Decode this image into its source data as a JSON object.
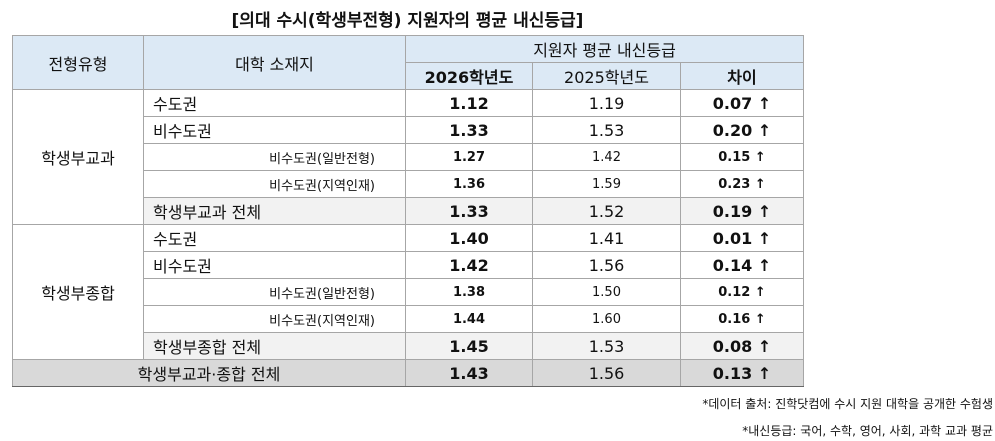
{
  "title": "[의대 수시(학생부전형) 지원자의 평균 내신등급]",
  "table": {
    "header": {
      "type": "전형유형",
      "region": "대학 소재지",
      "group": "지원자 평균 내신등급",
      "columns": [
        "2026학년도",
        "2025학년도",
        "차이"
      ]
    },
    "groups": [
      {
        "name": "학생부교과",
        "rows": [
          {
            "region": "수도권",
            "values": [
              "1.12",
              "1.19",
              "0.07 ↑"
            ]
          },
          {
            "region": "비수도권",
            "values": [
              "1.33",
              "1.53",
              "0.20 ↑"
            ],
            "breakdown": [
              {
                "region": "비수도권(일반전형)",
                "values": [
                  "1.27",
                  "1.42",
                  "0.15 ↑"
                ]
              },
              {
                "region": "비수도권(지역인재)",
                "values": [
                  "1.36",
                  "1.59",
                  "0.23 ↑"
                ]
              }
            ]
          }
        ],
        "total": {
          "region": "학생부교과 전체",
          "values": [
            "1.33",
            "1.52",
            "0.19 ↑"
          ]
        }
      },
      {
        "name": "학생부종합",
        "rows": [
          {
            "region": "수도권",
            "values": [
              "1.40",
              "1.41",
              "0.01 ↑"
            ]
          },
          {
            "region": "비수도권",
            "values": [
              "1.42",
              "1.56",
              "0.14 ↑"
            ],
            "breakdown": [
              {
                "region": "비수도권(일반전형)",
                "values": [
                  "1.38",
                  "1.50",
                  "0.12 ↑"
                ]
              },
              {
                "region": "비수도권(지역인재)",
                "values": [
                  "1.44",
                  "1.60",
                  "0.16 ↑"
                ]
              }
            ]
          }
        ],
        "total": {
          "region": "학생부종합 전체",
          "values": [
            "1.45",
            "1.53",
            "0.08 ↑"
          ]
        }
      }
    ],
    "total": {
      "label": "학생부교과·종합 전체",
      "values": [
        "1.43",
        "1.56",
        "0.13 ↑"
      ]
    }
  },
  "notes": [
    "*데이터 출처: 진학닷컴에 수시 지원 대학을 공개한 수험생",
    "*내신등급: 국어, 수학, 영어, 사회, 과학 교과 평균"
  ]
}
